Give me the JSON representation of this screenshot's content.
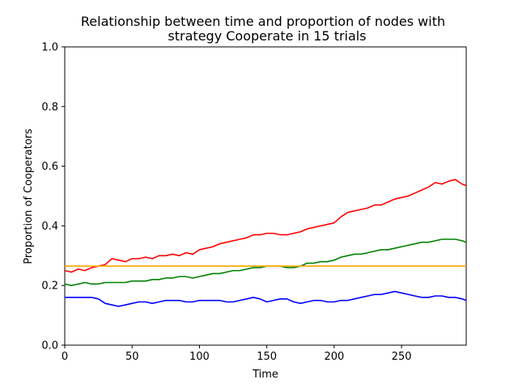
{
  "chart_data": {
    "type": "line",
    "title_lines": [
      "Relationship between time and proportion of nodes with",
      "strategy Cooperate in 15 trials"
    ],
    "xlabel": "Time",
    "ylabel": "Proportion of Cooperators",
    "xlim": [
      0,
      298
    ],
    "ylim": [
      0,
      1.0
    ],
    "xticks": [
      0,
      50,
      100,
      150,
      200,
      250
    ],
    "xtick_labels": [
      "0",
      "50",
      "100",
      "150",
      "200",
      "250"
    ],
    "yticks": [
      0,
      0.2,
      0.4,
      0.6,
      0.8,
      1.0
    ],
    "ytick_labels": [
      "0.0",
      "0.2",
      "0.4",
      "0.6",
      "0.8",
      "1.0"
    ],
    "grid": false,
    "series": [
      {
        "color": "#ff0000",
        "x": [
          0,
          5,
          10,
          15,
          20,
          25,
          30,
          35,
          40,
          45,
          50,
          55,
          60,
          65,
          70,
          75,
          80,
          85,
          90,
          95,
          100,
          105,
          110,
          115,
          120,
          125,
          130,
          135,
          140,
          145,
          150,
          155,
          160,
          165,
          170,
          175,
          180,
          185,
          190,
          195,
          200,
          205,
          210,
          215,
          220,
          225,
          230,
          235,
          240,
          245,
          250,
          255,
          260,
          265,
          270,
          275,
          280,
          285,
          290,
          295,
          298
        ],
        "y": [
          0.25,
          0.245,
          0.255,
          0.25,
          0.26,
          0.265,
          0.27,
          0.29,
          0.285,
          0.28,
          0.29,
          0.29,
          0.295,
          0.29,
          0.3,
          0.3,
          0.305,
          0.3,
          0.31,
          0.305,
          0.32,
          0.325,
          0.33,
          0.34,
          0.345,
          0.35,
          0.355,
          0.36,
          0.37,
          0.37,
          0.375,
          0.375,
          0.37,
          0.37,
          0.375,
          0.38,
          0.39,
          0.395,
          0.4,
          0.405,
          0.41,
          0.43,
          0.445,
          0.45,
          0.455,
          0.46,
          0.47,
          0.47,
          0.48,
          0.49,
          0.495,
          0.5,
          0.51,
          0.52,
          0.53,
          0.545,
          0.54,
          0.55,
          0.555,
          0.54,
          0.535
        ]
      },
      {
        "color": "#008000",
        "x": [
          0,
          5,
          10,
          15,
          20,
          25,
          30,
          35,
          40,
          45,
          50,
          55,
          60,
          65,
          70,
          75,
          80,
          85,
          90,
          95,
          100,
          105,
          110,
          115,
          120,
          125,
          130,
          135,
          140,
          145,
          150,
          155,
          160,
          165,
          170,
          175,
          180,
          185,
          190,
          195,
          200,
          205,
          210,
          215,
          220,
          225,
          230,
          235,
          240,
          245,
          250,
          255,
          260,
          265,
          270,
          275,
          280,
          285,
          290,
          295,
          298
        ],
        "y": [
          0.205,
          0.2,
          0.205,
          0.21,
          0.205,
          0.205,
          0.21,
          0.21,
          0.21,
          0.21,
          0.215,
          0.215,
          0.215,
          0.22,
          0.22,
          0.225,
          0.225,
          0.23,
          0.23,
          0.225,
          0.23,
          0.235,
          0.24,
          0.24,
          0.245,
          0.25,
          0.25,
          0.255,
          0.26,
          0.26,
          0.265,
          0.265,
          0.265,
          0.26,
          0.26,
          0.265,
          0.275,
          0.275,
          0.28,
          0.28,
          0.285,
          0.295,
          0.3,
          0.305,
          0.305,
          0.31,
          0.315,
          0.32,
          0.32,
          0.325,
          0.33,
          0.335,
          0.34,
          0.345,
          0.345,
          0.35,
          0.355,
          0.355,
          0.355,
          0.35,
          0.345
        ]
      },
      {
        "color": "#0000ff",
        "x": [
          0,
          5,
          10,
          15,
          20,
          25,
          30,
          35,
          40,
          45,
          50,
          55,
          60,
          65,
          70,
          75,
          80,
          85,
          90,
          95,
          100,
          105,
          110,
          115,
          120,
          125,
          130,
          135,
          140,
          145,
          150,
          155,
          160,
          165,
          170,
          175,
          180,
          185,
          190,
          195,
          200,
          205,
          210,
          215,
          220,
          225,
          230,
          235,
          240,
          245,
          250,
          255,
          260,
          265,
          270,
          275,
          280,
          285,
          290,
          295,
          298
        ],
        "y": [
          0.16,
          0.16,
          0.16,
          0.16,
          0.16,
          0.155,
          0.14,
          0.135,
          0.13,
          0.135,
          0.14,
          0.145,
          0.145,
          0.14,
          0.145,
          0.15,
          0.15,
          0.15,
          0.145,
          0.145,
          0.15,
          0.15,
          0.15,
          0.15,
          0.145,
          0.145,
          0.15,
          0.155,
          0.16,
          0.155,
          0.145,
          0.15,
          0.155,
          0.155,
          0.145,
          0.14,
          0.145,
          0.15,
          0.15,
          0.145,
          0.145,
          0.15,
          0.15,
          0.155,
          0.16,
          0.165,
          0.17,
          0.17,
          0.175,
          0.18,
          0.175,
          0.17,
          0.165,
          0.16,
          0.16,
          0.165,
          0.165,
          0.16,
          0.16,
          0.155,
          0.15
        ]
      },
      {
        "color": "#ffa500",
        "x": [
          0,
          298
        ],
        "y": [
          0.265,
          0.265
        ]
      }
    ]
  }
}
